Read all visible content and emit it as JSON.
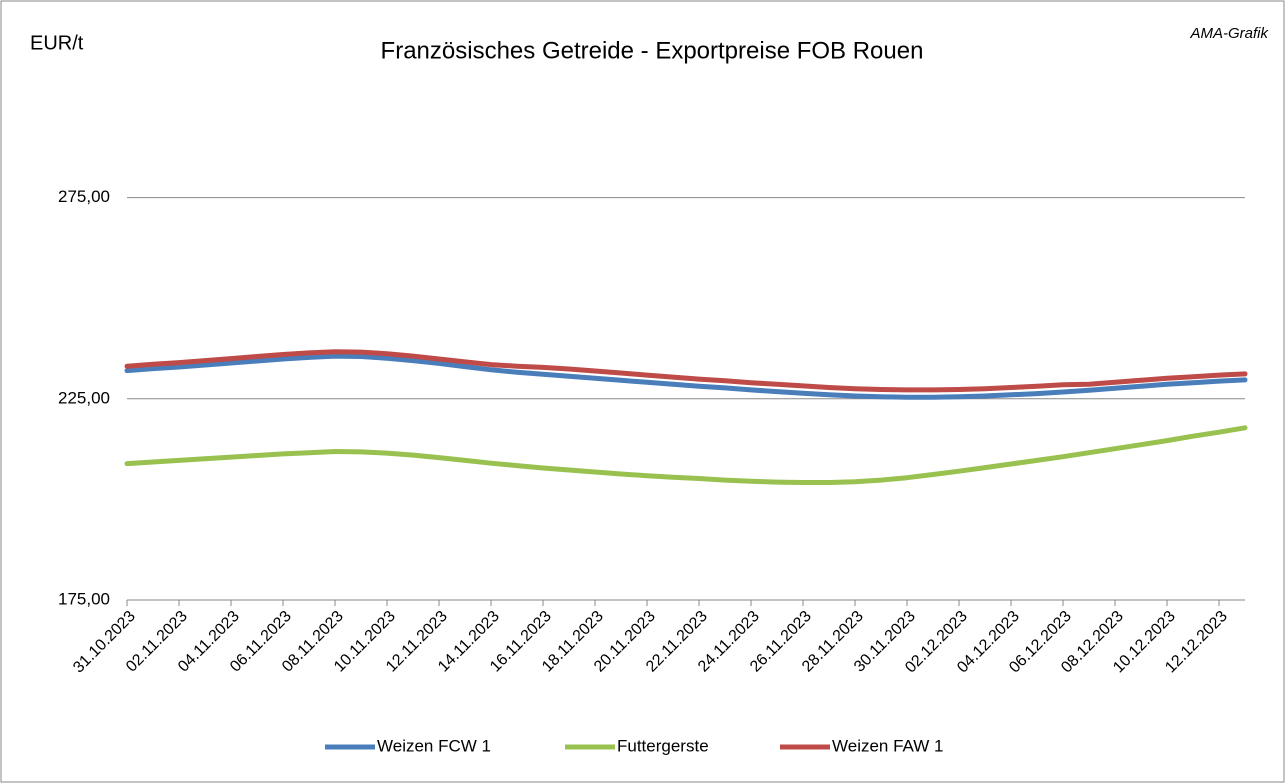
{
  "chart_data": {
    "type": "line",
    "title": "Französisches Getreide - Exportpreise FOB Rouen",
    "y_axis_label": "EUR/t",
    "annotation": "AMA-Grafik",
    "categories": [
      "31.10.2023",
      null,
      "02.11.2023",
      null,
      "04.11.2023",
      null,
      "06.11.2023",
      null,
      "08.11.2023",
      null,
      "10.11.2023",
      null,
      "12.11.2023",
      null,
      "14.11.2023",
      null,
      "16.11.2023",
      null,
      "18.11.2023",
      null,
      "20.11.2023",
      null,
      "22.11.2023",
      null,
      "24.11.2023",
      null,
      "26.11.2023",
      null,
      "28.11.2023",
      null,
      "30.11.2023",
      null,
      "02.12.2023",
      null,
      "04.12.2023",
      null,
      "06.12.2023",
      null,
      "08.12.2023",
      null,
      "10.12.2023",
      null,
      "12.12.2023",
      null
    ],
    "series": [
      {
        "name": "Weizen FCW 1",
        "color": "#4a7ebb",
        "values": [
          232.0,
          232.5,
          232.9,
          233.4,
          233.9,
          234.4,
          234.9,
          235.3,
          235.6,
          235.5,
          235.1,
          234.5,
          233.8,
          233.0,
          232.2,
          231.6,
          231.1,
          230.6,
          230.1,
          229.6,
          229.1,
          228.6,
          228.1,
          227.7,
          227.2,
          226.8,
          226.4,
          226.0,
          225.7,
          225.5,
          225.4,
          225.4,
          225.5,
          225.7,
          226.0,
          226.3,
          226.7,
          227.1,
          227.6,
          228.1,
          228.6,
          229.0,
          229.4,
          229.7
        ]
      },
      {
        "name": "Futtergerste",
        "color": "#98c14f",
        "values": [
          208.9,
          209.3,
          209.7,
          210.1,
          210.5,
          210.9,
          211.3,
          211.6,
          211.9,
          211.8,
          211.5,
          211.0,
          210.4,
          209.7,
          209.0,
          208.4,
          207.8,
          207.3,
          206.8,
          206.3,
          205.9,
          205.5,
          205.2,
          204.8,
          204.5,
          204.3,
          204.2,
          204.2,
          204.4,
          204.8,
          205.4,
          206.2,
          207.0,
          207.9,
          208.8,
          209.7,
          210.6,
          211.6,
          212.6,
          213.6,
          214.6,
          215.7,
          216.7,
          217.8
        ]
      },
      {
        "name": "Weizen FAW 1",
        "color": "#be4b48",
        "values": [
          233.1,
          233.6,
          234.0,
          234.5,
          235.0,
          235.5,
          236.0,
          236.4,
          236.7,
          236.6,
          236.2,
          235.6,
          234.9,
          234.2,
          233.5,
          233.1,
          232.8,
          232.4,
          231.9,
          231.4,
          230.9,
          230.4,
          229.9,
          229.5,
          229.0,
          228.6,
          228.2,
          227.8,
          227.5,
          227.3,
          227.2,
          227.2,
          227.3,
          227.5,
          227.8,
          228.1,
          228.5,
          228.6,
          229.1,
          229.6,
          230.1,
          230.5,
          230.9,
          231.2
        ]
      }
    ],
    "ylim": [
      175,
      300
    ],
    "yticks": [
      {
        "value": 175,
        "label": "175,00"
      },
      {
        "value": 225,
        "label": "225,00"
      },
      {
        "value": 275,
        "label": "275,00"
      }
    ],
    "grid": true,
    "legend": "bottom"
  }
}
